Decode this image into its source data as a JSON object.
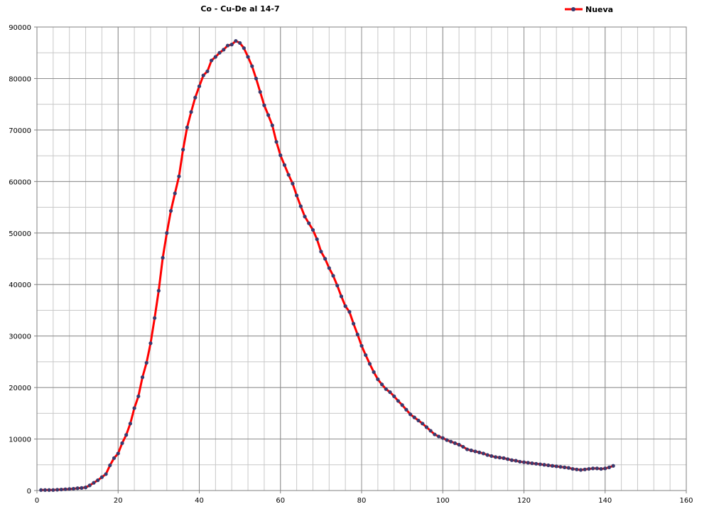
{
  "chart_data": {
    "type": "line",
    "title": "Co - Cu-De al 14-7",
    "xlabel": "",
    "ylabel": "",
    "xlim": [
      0,
      160
    ],
    "ylim": [
      0,
      90000
    ],
    "x_ticks": [
      0,
      20,
      40,
      60,
      80,
      100,
      120,
      140,
      160
    ],
    "y_ticks": [
      0,
      10000,
      20000,
      30000,
      40000,
      50000,
      60000,
      70000,
      80000,
      90000
    ],
    "grid": true,
    "legend_position": "top-right",
    "series": [
      {
        "name": "Nueva",
        "line_color": "#ff0000",
        "marker_color": "#3a3a6e",
        "x": [
          1,
          2,
          3,
          4,
          5,
          6,
          7,
          8,
          9,
          10,
          11,
          12,
          13,
          14,
          15,
          16,
          17,
          18,
          19,
          20,
          21,
          22,
          23,
          24,
          25,
          26,
          27,
          28,
          29,
          30,
          31,
          32,
          33,
          34,
          35,
          36,
          37,
          38,
          39,
          40,
          41,
          42,
          43,
          44,
          45,
          46,
          47,
          48,
          49,
          50,
          51,
          52,
          53,
          54,
          55,
          56,
          57,
          58,
          59,
          60,
          61,
          62,
          63,
          64,
          65,
          66,
          67,
          68,
          69,
          70,
          71,
          72,
          73,
          74,
          75,
          76,
          77,
          78,
          79,
          80,
          81,
          82,
          83,
          84,
          85,
          86,
          87,
          88,
          89,
          90,
          91,
          92,
          93,
          94,
          95,
          96,
          97,
          98,
          99,
          100,
          101,
          102,
          103,
          104,
          105,
          106,
          107,
          108,
          109,
          110,
          111,
          112,
          113,
          114,
          115,
          116,
          117,
          118,
          119,
          120,
          121,
          122,
          123,
          124,
          125,
          126,
          127,
          128,
          129,
          130,
          131,
          132,
          133,
          134,
          135,
          136,
          137,
          138,
          139,
          140,
          141,
          142
        ],
        "values": [
          100,
          100,
          100,
          100,
          150,
          200,
          250,
          300,
          350,
          450,
          500,
          600,
          1000,
          1500,
          2000,
          2600,
          3200,
          4900,
          6300,
          7200,
          9200,
          10800,
          13000,
          16000,
          18300,
          22000,
          24800,
          28600,
          33500,
          38800,
          45200,
          50000,
          54300,
          57700,
          61000,
          66200,
          70500,
          73500,
          76300,
          78500,
          80600,
          81400,
          83500,
          84200,
          85000,
          85600,
          86400,
          86600,
          87300,
          86900,
          85900,
          84200,
          82400,
          80000,
          77400,
          74800,
          72900,
          70900,
          67700,
          65100,
          63200,
          61300,
          59600,
          57300,
          55200,
          53200,
          51900,
          50600,
          48800,
          46400,
          45000,
          43200,
          41700,
          39800,
          37700,
          35800,
          34700,
          32400,
          30300,
          28100,
          26300,
          24600,
          23000,
          21600,
          20600,
          19700,
          19100,
          18300,
          17400,
          16600,
          15700,
          14800,
          14200,
          13600,
          13000,
          12300,
          11600,
          10900,
          10500,
          10200,
          9800,
          9500,
          9200,
          8900,
          8500,
          8000,
          7800,
          7600,
          7400,
          7200,
          6900,
          6700,
          6500,
          6400,
          6300,
          6100,
          5900,
          5800,
          5600,
          5500,
          5400,
          5300,
          5200,
          5100,
          5000,
          4900,
          4800,
          4700,
          4600,
          4500,
          4400,
          4200,
          4100,
          4000,
          4100,
          4200,
          4300,
          4300,
          4200,
          4300,
          4500,
          4800
        ]
      }
    ]
  }
}
